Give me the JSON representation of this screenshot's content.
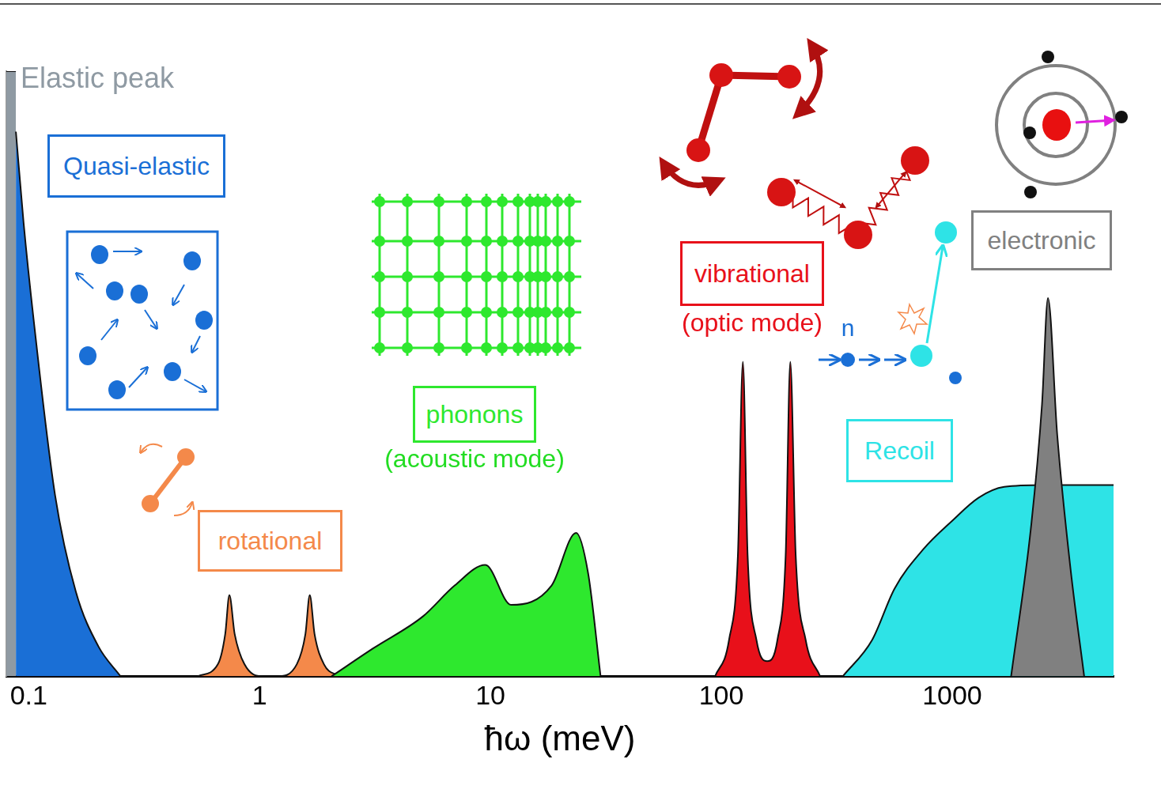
{
  "chart_data": {
    "type": "area",
    "x_label": "ħω (meV)",
    "log": "x",
    "grid": false,
    "tick_labels": "x",
    "xlim": [
      0.08,
      5000
    ],
    "xticks": [
      0.1,
      1,
      10,
      100,
      1000
    ],
    "ylim": [
      0,
      100
    ],
    "series": [
      {
        "name": "Elastic peak",
        "color": "#8f9aa3",
        "x": [
          0.08,
          0.088
        ],
        "values": [
          100,
          100
        ]
      },
      {
        "name": "Quasi-elastic",
        "color": "#1a6fd6",
        "x": [
          0.088,
          0.095,
          0.105,
          0.13,
          0.16,
          0.2,
          0.25
        ],
        "values": [
          90,
          75,
          59,
          30,
          14,
          5,
          0
        ]
      },
      {
        "name": "rotational",
        "color": "#f4894a",
        "x": [
          0.54,
          0.66,
          0.71,
          0.74,
          0.78,
          0.86,
          1.03,
          1.2,
          1.45,
          1.58,
          1.65,
          1.73,
          1.9,
          2.2
        ],
        "values": [
          0,
          2,
          7,
          13.4,
          7,
          2,
          0,
          0,
          2,
          7,
          13.4,
          7,
          2,
          0
        ]
      },
      {
        "name": "phonons",
        "color": "#2ee82e",
        "x": [
          2.05,
          3.1,
          5.1,
          7,
          9.5,
          12.3,
          18.4,
          23.5,
          26.5,
          30
        ],
        "values": [
          0,
          4.6,
          9.9,
          15,
          18.4,
          11.8,
          15,
          23.7,
          17,
          0
        ]
      },
      {
        "name": "vibrational",
        "color": "#e8101a",
        "x": [
          94,
          108,
          118,
          124,
          130,
          142,
          158,
          175,
          190,
          199,
          210,
          232,
          268
        ],
        "values": [
          0,
          6,
          20,
          52,
          20,
          6,
          2.5,
          6,
          20,
          52,
          20,
          6,
          0
        ]
      },
      {
        "name": "Recoil",
        "color": "#2ee3e6",
        "x": [
          336,
          450,
          563,
          750,
          1000,
          1300,
          1680,
          2500,
          5000
        ],
        "values": [
          0,
          6,
          14.5,
          21,
          25.7,
          29.5,
          31.3,
          31.6,
          31.6
        ]
      },
      {
        "name": "electronic",
        "color": "#808080",
        "x": [
          1800,
          2200,
          2450,
          2600,
          2850,
          3250,
          3730
        ],
        "values": [
          0,
          25,
          45,
          62.5,
          40,
          18,
          0
        ]
      }
    ],
    "annotations": [
      {
        "text": "(acoustic mode)",
        "color": "#22dd22"
      },
      {
        "text": "(optic mode)",
        "color": "#e8101a"
      },
      {
        "text": "n",
        "color": "#1a6fd6"
      }
    ]
  }
}
